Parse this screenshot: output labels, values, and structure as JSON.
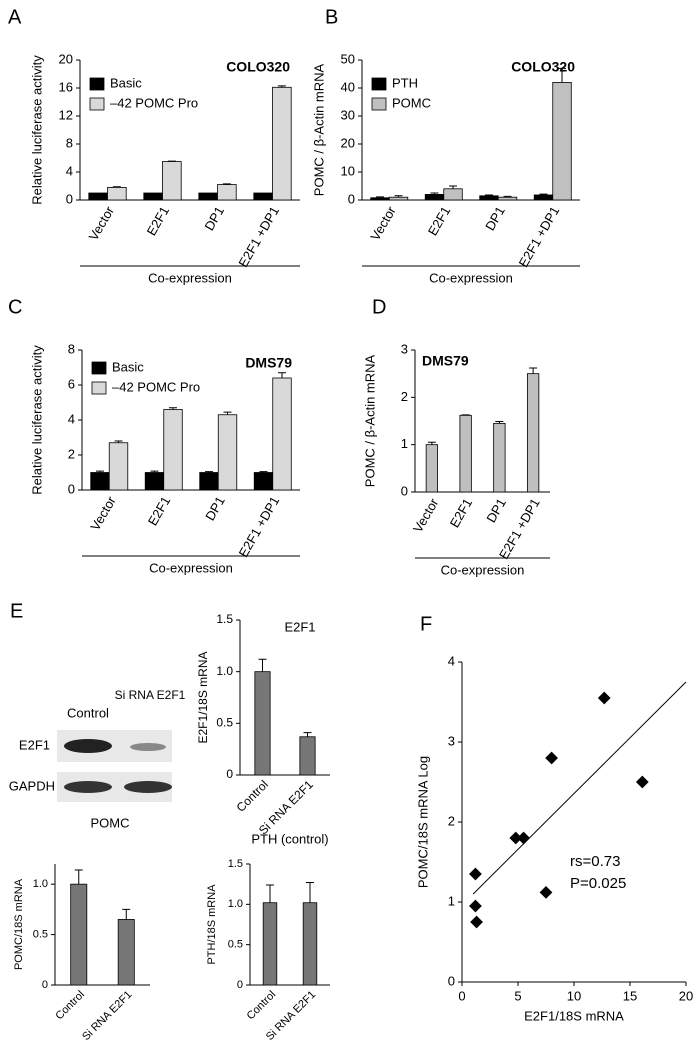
{
  "chart_data": [
    {
      "type": "bar",
      "panel": "A",
      "title": "COLO320",
      "ylabel": "Relative luciferase activity",
      "xlabel": "Co-expression",
      "categories": [
        "Vector",
        "E2F1",
        "DP1",
        "E2F1 +DP1"
      ],
      "series": [
        {
          "name": "Basic",
          "color": "#000000",
          "values": [
            1,
            1,
            1,
            1
          ]
        },
        {
          "name": "–42 POMC Pro",
          "color": "#d9d9d9",
          "values": [
            1.8,
            5.5,
            2.2,
            16.1
          ],
          "errors": [
            0.1,
            0.05,
            0.1,
            0.2
          ]
        }
      ],
      "ylim": [
        0,
        20
      ],
      "yticks": [
        0,
        4,
        8,
        12,
        16,
        20
      ],
      "legend": "top-left"
    },
    {
      "type": "bar",
      "panel": "B",
      "title": "COLO320",
      "ylabel": "POMC / β-Actin mRNA",
      "xlabel": "Co-expression",
      "categories": [
        "Vector",
        "E2F1",
        "DP1",
        "E2F1 +DP1"
      ],
      "series": [
        {
          "name": "PTH",
          "color": "#000000",
          "values": [
            0.8,
            2,
            1.5,
            1.8
          ],
          "errors": [
            0.3,
            0.5,
            0.3,
            0.3
          ]
        },
        {
          "name": "POMC",
          "color": "#c0c0c0",
          "values": [
            1,
            4,
            1,
            42
          ],
          "errors": [
            0.5,
            1,
            0.3,
            5
          ]
        }
      ],
      "ylim": [
        0,
        50
      ],
      "yticks": [
        0,
        10,
        20,
        30,
        40,
        50
      ],
      "legend": "top-left"
    },
    {
      "type": "bar",
      "panel": "C",
      "title": "DMS79",
      "ylabel": "Relative luciferase activity",
      "xlabel": "Co-expression",
      "categories": [
        "Vector",
        "E2F1",
        "DP1",
        "E2F1 +DP1"
      ],
      "series": [
        {
          "name": "Basic",
          "color": "#000000",
          "values": [
            1,
            1,
            1,
            1
          ],
          "errors": [
            0.08,
            0.08,
            0.05,
            0.05
          ]
        },
        {
          "name": "–42 POMC Pro",
          "color": "#d9d9d9",
          "values": [
            2.7,
            4.6,
            4.3,
            6.4
          ],
          "errors": [
            0.1,
            0.1,
            0.15,
            0.3
          ]
        }
      ],
      "ylim": [
        0,
        8
      ],
      "yticks": [
        0,
        2,
        4,
        6,
        8
      ],
      "legend": "top-left"
    },
    {
      "type": "bar",
      "panel": "D",
      "title": "DMS79",
      "ylabel": "POMC / β-Actin mRNA",
      "xlabel": "Co-expression",
      "categories": [
        "Vector",
        "E2F1",
        "DP1",
        "E2F1 +DP1"
      ],
      "series": [
        {
          "color": "#bfbfbf",
          "values": [
            1.0,
            1.62,
            1.45,
            2.5
          ],
          "errors": [
            0.05,
            0.01,
            0.04,
            0.12
          ]
        }
      ],
      "ylim": [
        0,
        3
      ],
      "yticks": [
        0,
        1,
        2,
        3
      ]
    },
    {
      "type": "bar",
      "panel": "E",
      "title": "E2F1",
      "ylabel": "E2F1/18S mRNA",
      "categories": [
        "Control",
        "Si RNA E2F1"
      ],
      "series": [
        {
          "color": "#777777",
          "values": [
            1.0,
            0.37
          ],
          "errors": [
            0.12,
            0.04
          ]
        }
      ],
      "ylim": [
        0,
        1.5
      ],
      "yticks": [
        0,
        0.5,
        {
          "value": 1,
          "label": "1.0"
        },
        1.5
      ]
    },
    {
      "type": "bar",
      "title": "POMC",
      "ylabel": "POMC/18S mRNA",
      "categories": [
        "Control",
        "Si RNA E2F1"
      ],
      "series": [
        {
          "color": "#777777",
          "values": [
            1.0,
            0.65
          ],
          "errors": [
            0.14,
            0.1
          ]
        }
      ],
      "ylim": [
        0,
        1.2
      ],
      "yticks": [
        0,
        0.5,
        {
          "value": 1,
          "label": "1.0"
        }
      ]
    },
    {
      "type": "bar",
      "title": "PTH (control)",
      "ylabel": "PTH/18S mRNA",
      "categories": [
        "Control",
        "Si RNA E2F1"
      ],
      "series": [
        {
          "color": "#777777",
          "values": [
            1.02,
            1.02
          ],
          "errors": [
            0.22,
            0.25
          ]
        }
      ],
      "ylim": [
        0,
        1.5
      ],
      "yticks": [
        0,
        0.5,
        {
          "value": 1,
          "label": "1.0"
        },
        1.5
      ]
    },
    {
      "type": "scatter",
      "panel": "F",
      "xlabel": "E2F1/18S mRNA",
      "ylabel": "POMC/18S mRNA Log",
      "x": [
        1.2,
        1.2,
        1.3,
        4.8,
        5.5,
        7.5,
        8,
        12.7,
        16.1
      ],
      "y": [
        1.35,
        0.95,
        0.75,
        1.8,
        1.8,
        1.12,
        2.8,
        3.55,
        2.5
      ],
      "trendline": {
        "x": [
          1,
          20
        ],
        "y": [
          1.1,
          3.75
        ]
      },
      "annotations": [
        "rs=0.73",
        "P=0.025"
      ],
      "xlim": [
        0,
        20
      ],
      "xticks": [
        0,
        5,
        10,
        15,
        20
      ],
      "ylim": [
        0,
        4
      ],
      "yticks": [
        0,
        1,
        2,
        3,
        4
      ]
    }
  ],
  "blot": {
    "column_labels": [
      "Control",
      "Si RNA E2F1"
    ],
    "row_labels": [
      "E2F1",
      "GAPDH"
    ]
  }
}
